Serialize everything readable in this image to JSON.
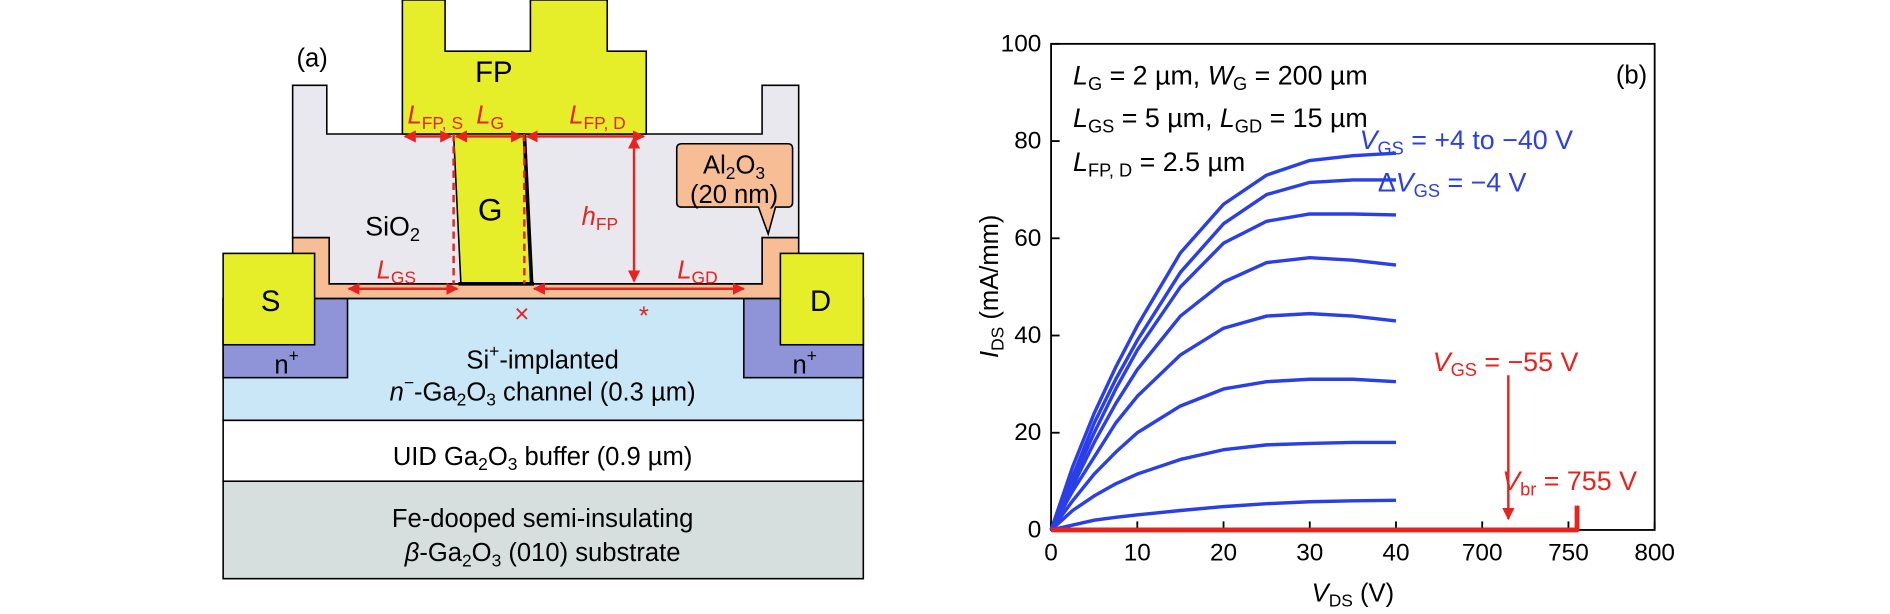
{
  "panel_a": {
    "label": "(a)",
    "fp": "FP",
    "gate": "G",
    "source": "S",
    "drain": "D",
    "n_plus": [
      [
        "n",
        "+"
      ],
      [
        "n",
        "+"
      ]
    ],
    "oxide": [
      "SiO",
      "2"
    ],
    "al2o3": [
      "Al",
      "2",
      "O",
      "3"
    ],
    "al2o3_thickness": "(20 nm)",
    "dimensions": {
      "l_fp_s": [
        "L",
        "FP, S"
      ],
      "l_g": [
        "L",
        "G"
      ],
      "l_fp_d": [
        "L",
        "FP, D"
      ],
      "h_fp": [
        "h",
        "FP"
      ],
      "l_gs": [
        "L",
        "GS"
      ],
      "l_gd": [
        "L",
        "GD"
      ]
    },
    "markers": [
      "×",
      "*"
    ],
    "channel_line1": [
      "Si",
      "+",
      "-implanted"
    ],
    "channel_line2": [
      "n",
      "−",
      "-Ga",
      "2",
      "O",
      "3",
      " channel (0.3 µm)"
    ],
    "buffer": [
      "UID Ga",
      "2",
      "O",
      "3",
      " buffer (0.9 µm)"
    ],
    "substrate_line1": "Fe-dooped semi-insulating",
    "substrate_line2": [
      "β",
      "-Ga",
      "2",
      "O",
      "3",
      " (010) substrate"
    ]
  },
  "chart_data": {
    "type": "line",
    "panel_label": "(b)",
    "xlabel": [
      "V",
      "DS",
      " (V)"
    ],
    "ylabel": [
      "I",
      "DS",
      " (mA/mm)"
    ],
    "xlim": [
      0,
      800
    ],
    "ylim": [
      0,
      100
    ],
    "xticks": [
      0,
      10,
      20,
      30,
      40,
      700,
      750,
      800
    ],
    "yticks": [
      0,
      20,
      40,
      60,
      80,
      100
    ],
    "grid": false,
    "x": [
      0,
      2.5,
      5,
      7.5,
      10,
      15,
      20,
      25,
      30,
      35,
      40
    ],
    "series": [
      {
        "color": "#2b3fe6",
        "values": [
          0,
          13,
          24,
          33.5,
          42,
          57,
          67,
          73,
          76,
          77,
          77.5
        ]
      },
      {
        "color": "#2b3fe6",
        "values": [
          0,
          11,
          22,
          31,
          39,
          53,
          63,
          69,
          71.5,
          72,
          72
        ]
      },
      {
        "color": "#2b3fe6",
        "values": [
          0,
          10,
          20,
          29,
          37,
          50,
          59,
          63.5,
          65,
          65,
          64.8
        ]
      },
      {
        "color": "#2b3fe6",
        "values": [
          0,
          9,
          18,
          26,
          33,
          44,
          51,
          55,
          56,
          55.5,
          54.5
        ]
      },
      {
        "color": "#2b3fe6",
        "values": [
          0,
          8,
          15,
          22,
          27.5,
          36,
          41.5,
          44,
          44.5,
          44,
          43
        ]
      },
      {
        "color": "#2b3fe6",
        "values": [
          0,
          6,
          11.5,
          16,
          20,
          25.5,
          29,
          30.5,
          31,
          31,
          30.5
        ]
      },
      {
        "color": "#2b3fe6",
        "values": [
          0,
          4,
          7,
          9.5,
          11.5,
          14.5,
          16.5,
          17.5,
          17.8,
          18,
          18
        ]
      },
      {
        "color": "#2b3fe6",
        "values": [
          0,
          1,
          2,
          2.6,
          3.1,
          4,
          4.8,
          5.4,
          5.8,
          6,
          6.1
        ]
      },
      {
        "color": "#e8231f",
        "x": [
          0,
          755,
          755
        ],
        "values": [
          0,
          0,
          5
        ]
      }
    ],
    "annotations": [
      {
        "color": "#000000",
        "parts": [
          "L",
          "G",
          " = 2 µm, ",
          "W",
          "G",
          " = 200 µm"
        ]
      },
      {
        "color": "#000000",
        "parts": [
          "L",
          "GS",
          " = 5 µm, ",
          "L",
          "GD",
          " = 15 µm"
        ]
      },
      {
        "color": "#000000",
        "parts": [
          "L",
          "FP, D",
          " = 2.5 µm"
        ]
      },
      {
        "color": "#2b3fe6",
        "parts": [
          "V",
          "GS",
          " = +4 to −40 V"
        ]
      },
      {
        "color": "#2b3fe6",
        "parts": [
          "Δ",
          "V",
          "GS",
          " = −4 V"
        ]
      },
      {
        "color": "#e8231f",
        "parts": [
          "V",
          "GS",
          " = −55 V"
        ]
      },
      {
        "color": "#e8231f",
        "parts": [
          "V",
          "br",
          " = 755 V"
        ]
      }
    ]
  }
}
